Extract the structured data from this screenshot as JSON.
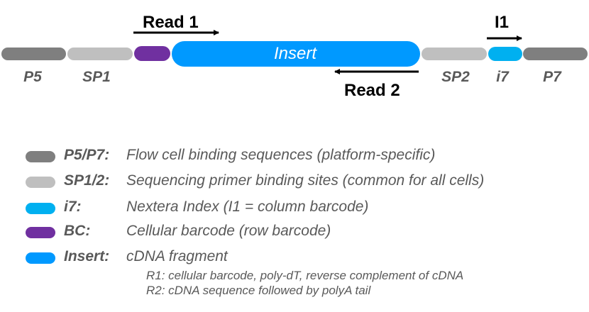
{
  "colors": {
    "p5p7": "#7f7f7f",
    "sp": "#bfbfbf",
    "bc": "#7030a0",
    "i7": "#00b0f0",
    "insert": "#0099ff",
    "text": "#595959"
  },
  "construct": {
    "segments": [
      {
        "key": "p5",
        "label": "P5"
      },
      {
        "key": "sp1",
        "label": "SP1"
      },
      {
        "key": "bc",
        "label": ""
      },
      {
        "key": "insert",
        "label": "Insert"
      },
      {
        "key": "sp2",
        "label": "SP2"
      },
      {
        "key": "i7",
        "label": "i7"
      },
      {
        "key": "p7",
        "label": "P7"
      }
    ],
    "reads": {
      "read1": "Read 1",
      "read2": "Read 2",
      "i1": "I1"
    }
  },
  "legend": [
    {
      "key": "P5/P7:",
      "desc": "Flow cell binding sequences (platform-specific)",
      "color": "#7f7f7f"
    },
    {
      "key": "SP1/2:",
      "desc": "Sequencing primer binding sites (common for all cells)",
      "color": "#bfbfbf"
    },
    {
      "key": "i7:",
      "desc": "Nextera Index (I1 = column barcode)",
      "color": "#00b0f0"
    },
    {
      "key": "BC:",
      "desc": "Cellular barcode (row barcode)",
      "color": "#7030a0"
    },
    {
      "key": "Insert:",
      "desc": "cDNA fragment",
      "color": "#0099ff"
    }
  ],
  "notes": [
    "R1: cellular barcode, poly-dT, reverse complement of cDNA",
    "R2: cDNA sequence followed by polyA tail"
  ]
}
